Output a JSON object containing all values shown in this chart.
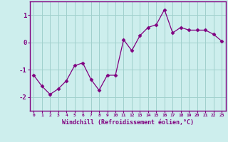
{
  "x": [
    0,
    1,
    2,
    3,
    4,
    5,
    6,
    7,
    8,
    9,
    10,
    11,
    12,
    13,
    14,
    15,
    16,
    17,
    18,
    19,
    20,
    21,
    22,
    23
  ],
  "y": [
    -1.2,
    -1.6,
    -1.9,
    -1.7,
    -1.4,
    -0.85,
    -0.75,
    -1.35,
    -1.75,
    -1.2,
    -1.2,
    0.1,
    -0.3,
    0.25,
    0.55,
    0.65,
    1.2,
    0.35,
    0.55,
    0.45,
    0.45,
    0.45,
    0.3,
    0.05
  ],
  "line_color": "#800080",
  "marker": "D",
  "marker_size": 2.5,
  "bg_color": "#cdeeed",
  "grid_color": "#a0d0cc",
  "xlabel": "Windchill (Refroidissement éolien,°C)",
  "xlabel_color": "#800080",
  "tick_color": "#800080",
  "spine_color": "#800080",
  "ylim": [
    -2.5,
    1.5
  ],
  "yticks": [
    -2,
    -1,
    0,
    1
  ],
  "xlim": [
    -0.5,
    23.5
  ],
  "xticks": [
    0,
    1,
    2,
    3,
    4,
    5,
    6,
    7,
    8,
    9,
    10,
    11,
    12,
    13,
    14,
    15,
    16,
    17,
    18,
    19,
    20,
    21,
    22,
    23
  ]
}
